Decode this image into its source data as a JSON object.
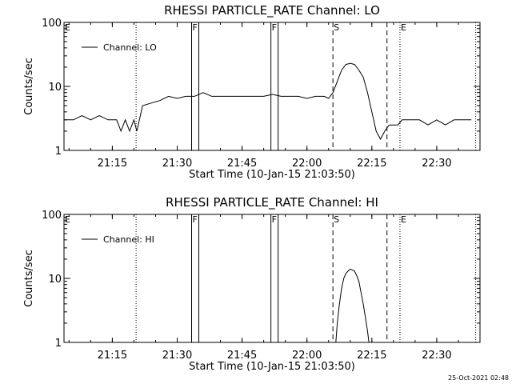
{
  "chart_data": [
    {
      "type": "line",
      "title": "RHESSI PARTICLE_RATE Channel: LO",
      "xlabel": "Start Time (10-Jan-15 21:03:50)",
      "ylabel": "Counts/sec",
      "yscale": "log",
      "xlim": [
        "21:03:50",
        "22:40:00"
      ],
      "ylim": [
        1,
        100
      ],
      "x_ticks": [
        "21:15",
        "21:30",
        "21:45",
        "22:00",
        "22:15",
        "22:30"
      ],
      "y_ticks": [
        "1",
        "10",
        "100"
      ],
      "legend": [
        "Channel: LO"
      ],
      "legend_position": "upper-left",
      "markers": [
        {
          "label": "E",
          "time": "21:03:50",
          "style": "dotted"
        },
        {
          "label": "",
          "time": "21:20:30",
          "style": "dotted"
        },
        {
          "label": "F",
          "time": "21:33:20",
          "style": "solid"
        },
        {
          "label": "",
          "time": "21:35:00",
          "style": "solid"
        },
        {
          "label": "F",
          "time": "21:51:40",
          "style": "solid"
        },
        {
          "label": "",
          "time": "21:53:20",
          "style": "solid"
        },
        {
          "label": "S",
          "time": "22:06:00",
          "style": "dashed"
        },
        {
          "label": "",
          "time": "22:18:30",
          "style": "dashed"
        },
        {
          "label": "E",
          "time": "22:21:30",
          "style": "dotted"
        },
        {
          "label": "",
          "time": "22:39:00",
          "style": "dotted"
        }
      ],
      "series": [
        {
          "name": "Channel: LO",
          "x": [
            "21:03:50",
            "21:06:00",
            "21:08:00",
            "21:10:00",
            "21:12:00",
            "21:14:00",
            "21:16:00",
            "21:17:00",
            "21:18:00",
            "21:19:00",
            "21:20:00",
            "21:20:40",
            "21:21:00",
            "21:22:00",
            "21:24:00",
            "21:26:00",
            "21:28:00",
            "21:30:00",
            "21:32:00",
            "21:34:00",
            "21:36:00",
            "21:38:00",
            "21:40:00",
            "21:42:00",
            "21:44:00",
            "21:46:00",
            "21:48:00",
            "21:50:00",
            "21:52:00",
            "21:54:00",
            "21:56:00",
            "21:58:00",
            "22:00:00",
            "22:02:00",
            "22:04:00",
            "22:05:00",
            "22:06:00",
            "22:07:00",
            "22:08:00",
            "22:09:00",
            "22:10:00",
            "22:11:00",
            "22:12:00",
            "22:13:00",
            "22:14:00",
            "22:15:00",
            "22:16:00",
            "22:17:00",
            "22:18:00",
            "22:19:00",
            "22:20:00",
            "22:21:00",
            "22:22:00",
            "22:24:00",
            "22:26:00",
            "22:28:00",
            "22:30:00",
            "22:32:00",
            "22:34:00",
            "22:36:00",
            "22:38:00"
          ],
          "y": [
            3,
            3,
            3.5,
            3,
            3.5,
            3,
            3,
            2,
            3,
            2,
            3,
            2,
            2.5,
            5,
            5.5,
            6,
            7,
            6.5,
            7,
            7,
            8,
            7,
            7,
            7,
            7,
            7,
            7,
            7,
            7.5,
            7,
            7,
            7,
            6.5,
            7,
            7,
            6.5,
            8,
            12,
            18,
            22,
            23,
            22,
            18,
            14,
            8,
            4,
            2,
            1.5,
            2,
            2.5,
            2.5,
            2.5,
            3,
            3,
            3,
            2.5,
            3,
            2.5,
            3,
            3,
            3
          ]
        }
      ]
    },
    {
      "type": "line",
      "title": "RHESSI PARTICLE_RATE Channel: HI",
      "xlabel": "Start Time (10-Jan-15 21:03:50)",
      "ylabel": "Counts/sec",
      "yscale": "log",
      "xlim": [
        "21:03:50",
        "22:40:00"
      ],
      "ylim": [
        1,
        100
      ],
      "x_ticks": [
        "21:15",
        "21:30",
        "21:45",
        "22:00",
        "22:15",
        "22:30"
      ],
      "y_ticks": [
        "1",
        "10",
        "100"
      ],
      "legend": [
        "Channel: HI"
      ],
      "legend_position": "upper-left",
      "markers": [
        {
          "label": "E",
          "time": "21:03:50",
          "style": "dotted"
        },
        {
          "label": "",
          "time": "21:20:30",
          "style": "dotted"
        },
        {
          "label": "F",
          "time": "21:33:20",
          "style": "solid"
        },
        {
          "label": "",
          "time": "21:35:00",
          "style": "solid"
        },
        {
          "label": "F",
          "time": "21:51:40",
          "style": "solid"
        },
        {
          "label": "",
          "time": "21:53:20",
          "style": "solid"
        },
        {
          "label": "S",
          "time": "22:06:00",
          "style": "dashed"
        },
        {
          "label": "",
          "time": "22:18:30",
          "style": "dashed"
        },
        {
          "label": "E",
          "time": "22:21:30",
          "style": "dotted"
        },
        {
          "label": "",
          "time": "22:39:00",
          "style": "dotted"
        }
      ],
      "series": [
        {
          "name": "Channel: HI",
          "x": [
            "22:06:40",
            "22:07:00",
            "22:07:30",
            "22:08:00",
            "22:08:30",
            "22:09:00",
            "22:09:30",
            "22:10:00",
            "22:10:30",
            "22:11:00",
            "22:11:30",
            "22:12:00",
            "22:12:30",
            "22:13:00",
            "22:13:30",
            "22:14:00",
            "22:14:20"
          ],
          "y": [
            1,
            2,
            4,
            7,
            10,
            12,
            13,
            14,
            13.5,
            13,
            11,
            9,
            6,
            4,
            2.5,
            1.5,
            1
          ]
        }
      ]
    }
  ],
  "timestamp": "25-Oct-2021 02:48"
}
